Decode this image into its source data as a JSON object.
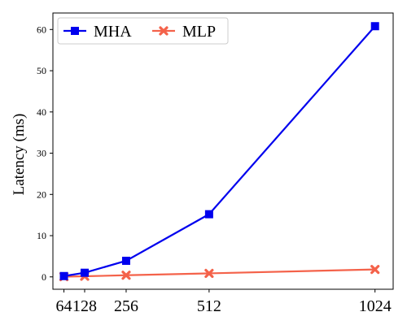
{
  "chart_data": {
    "type": "line",
    "xlabel": "",
    "ylabel": "Latency (ms)",
    "x": [
      64,
      128,
      256,
      512,
      1024
    ],
    "x_tick_labels": [
      "64",
      "128",
      "256",
      "512",
      "1024"
    ],
    "xlim": [
      30,
      1080
    ],
    "ylim": [
      -3,
      64
    ],
    "y_ticks": [
      0,
      10,
      20,
      30,
      40,
      50,
      60
    ],
    "grid": false,
    "legend_position": "top-left",
    "series": [
      {
        "name": "MHA",
        "values": [
          0.2,
          1.0,
          3.9,
          15.2,
          60.8
        ],
        "color": "#0000ee",
        "marker": "square"
      },
      {
        "name": "MLP",
        "values": [
          0.05,
          0.15,
          0.4,
          0.85,
          1.8
        ],
        "color": "#f4624a",
        "marker": "x"
      }
    ]
  }
}
